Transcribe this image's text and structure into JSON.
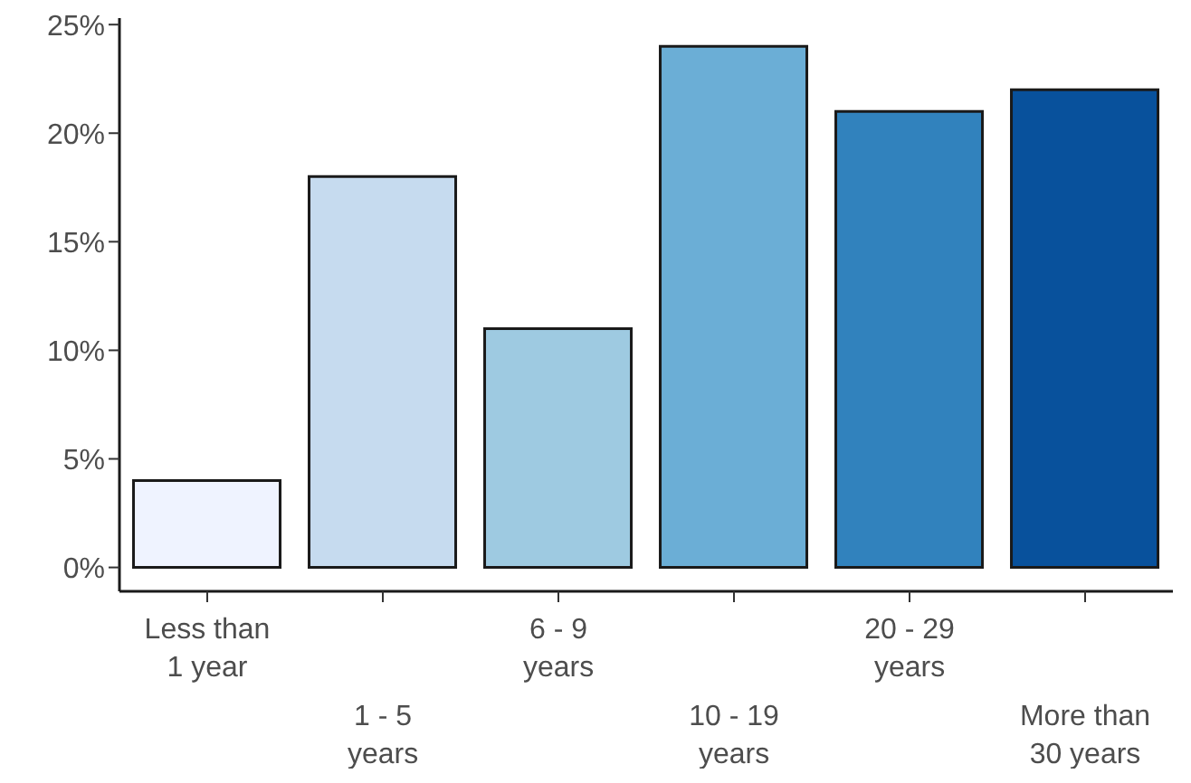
{
  "chart_data": {
    "type": "bar",
    "categories": [
      "Less than\n1 year",
      "1 - 5\nyears",
      "6 - 9\nyears",
      "10 - 19\nyears",
      "20 - 29\nyears",
      "More than\n30 years"
    ],
    "values": [
      4,
      18,
      11,
      24,
      21,
      22
    ],
    "colors": [
      "#eff3ff",
      "#c6dbef",
      "#9ecae1",
      "#6baed6",
      "#3182bd",
      "#08519c"
    ],
    "ylim": [
      -1.1,
      25.3
    ],
    "yticks": [
      {
        "value": 0,
        "label": "0%"
      },
      {
        "value": 5,
        "label": "5%"
      },
      {
        "value": 10,
        "label": "10%"
      },
      {
        "value": 15,
        "label": "15%"
      },
      {
        "value": 20,
        "label": "20%"
      },
      {
        "value": 25,
        "label": "25%"
      }
    ],
    "grid": false,
    "legend": false
  }
}
